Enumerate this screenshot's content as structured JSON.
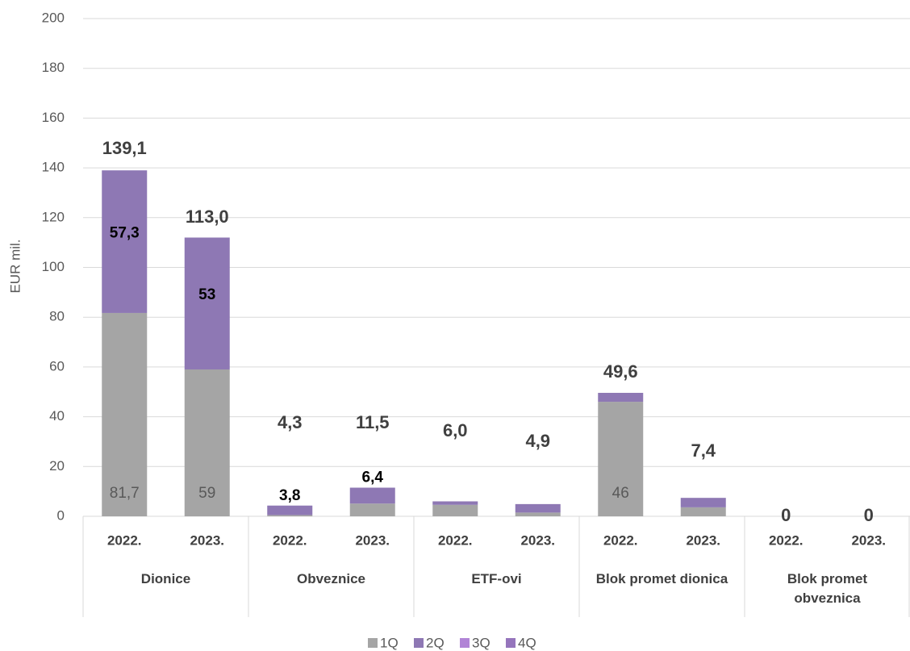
{
  "chart_data": {
    "type": "stacked_bar",
    "y_label": "EUR mil.",
    "categories": [
      "2022.",
      "2023.",
      "2022.",
      "2023.",
      "2022.",
      "2023.",
      "2022.",
      "2023.",
      "2022.",
      "2023."
    ],
    "groups": [
      "Dionice",
      "Obveznice",
      "ETF-ovi",
      "Blok promet dionica",
      "Blok promet obveznica"
    ],
    "series": [
      {
        "name": "1Q",
        "color": "#a5a5a5",
        "values": [
          81.7,
          59,
          0.5,
          5.1,
          4.6,
          1.5,
          46,
          3.6,
          0,
          0
        ],
        "value_labels": [
          "81,7",
          "59",
          null,
          null,
          null,
          null,
          "46",
          null,
          null,
          null
        ]
      },
      {
        "name": "2Q",
        "color": "#8e78b4",
        "values": [
          57.3,
          53,
          3.8,
          6.4,
          1.4,
          3.4,
          3.6,
          3.8,
          0,
          0
        ],
        "value_labels": [
          "57,3",
          "53",
          "3,8",
          "6,4",
          null,
          null,
          null,
          null,
          null,
          null
        ]
      },
      {
        "name": "3Q",
        "color": "#b184d6",
        "values": [
          0,
          0,
          0,
          0,
          0,
          0,
          0,
          0,
          0,
          0
        ]
      },
      {
        "name": "4Q",
        "color": "#9575bc",
        "values": [
          0,
          0,
          0,
          0,
          0,
          0,
          0,
          0,
          0,
          0
        ]
      }
    ],
    "totals": [
      139.1,
      113.0,
      4.3,
      11.5,
      6.0,
      4.9,
      49.6,
      7.4,
      0,
      0
    ],
    "total_labels": [
      "139,1",
      "113,0",
      "4,3",
      "11,5",
      "6,0",
      "4,9",
      "49,6",
      "7,4",
      "0",
      "0"
    ],
    "ylim": [
      0,
      200
    ],
    "yticks": [
      0,
      20,
      40,
      60,
      80,
      100,
      120,
      140,
      160,
      180,
      200
    ],
    "grid": true
  }
}
